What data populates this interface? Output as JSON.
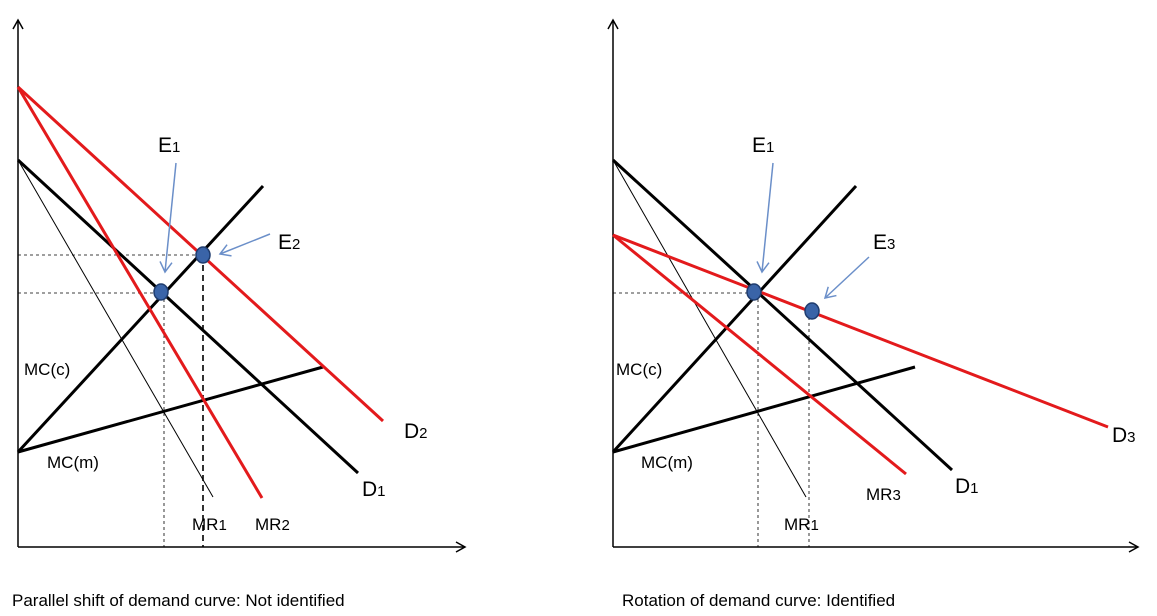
{
  "left_panel": {
    "caption": "Parallel shift of demand curve: Not identified",
    "labels": {
      "e1": "E",
      "e1_sub": "1",
      "e2": "E",
      "e2_sub": "2",
      "d2": "D",
      "d2_sub": "2",
      "d1": "D",
      "d1_sub": "1",
      "mc_c": "MC(c)",
      "mc_m": "MC(m)",
      "mr1": "MR",
      "mr1_sub": "1",
      "mr2": "MR",
      "mr2_sub": "2"
    }
  },
  "right_panel": {
    "caption": "Rotation of demand curve: Identified",
    "labels": {
      "e1": "E",
      "e1_sub": "1",
      "e3": "E",
      "e3_sub": "3",
      "d3": "D",
      "d3_sub": "3",
      "d1": "D",
      "d1_sub": "1",
      "mc_c": "MC(c)",
      "mc_m": "MC(m)",
      "mr1": "MR",
      "mr1_sub": "1",
      "mr3": "MR",
      "mr3_sub": "3"
    }
  },
  "colors": {
    "black_curve": "#000000",
    "red_curve": "#e31a1c",
    "arrow_blue": "#6b8fc9",
    "point_fill": "#3a64a8",
    "point_stroke": "#1f3c6e"
  }
}
